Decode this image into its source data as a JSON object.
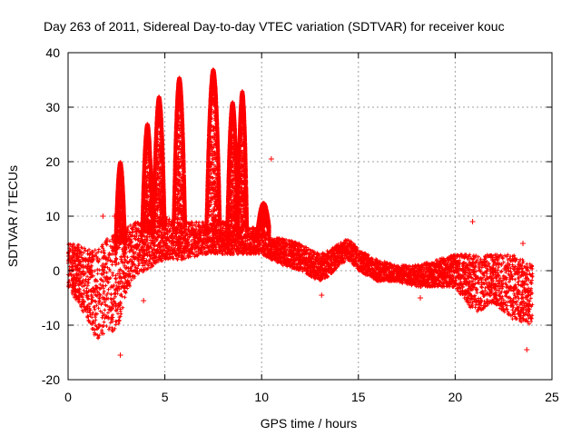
{
  "chart_data": {
    "type": "scatter",
    "title": "Day 263 of 2011, Sidereal Day-to-day VTEC variation (SDTVAR) for receiver kouc",
    "xlabel": "GPS time / hours",
    "ylabel": "SDTVAR / TECUs",
    "xlim": [
      0,
      25
    ],
    "ylim": [
      -20,
      40
    ],
    "x_ticks": [
      "0",
      "5",
      "10",
      "15",
      "20",
      "25"
    ],
    "y_ticks": [
      "-20",
      "-10",
      "0",
      "10",
      "20",
      "30",
      "40"
    ],
    "grid": true,
    "marker": "+",
    "series_color": "#ff0000",
    "series": [
      {
        "name": "SDTVAR",
        "band": [
          {
            "x": 0.0,
            "low": -3,
            "high": 5
          },
          {
            "x": 0.5,
            "low": -6,
            "high": 5
          },
          {
            "x": 1.0,
            "low": -9,
            "high": 4
          },
          {
            "x": 1.5,
            "low": -13,
            "high": 4
          },
          {
            "x": 2.0,
            "low": -11,
            "high": 6
          },
          {
            "x": 2.5,
            "low": -12,
            "high": 7
          },
          {
            "x": 3.0,
            "low": -4,
            "high": 8
          },
          {
            "x": 3.5,
            "low": -1,
            "high": 9
          },
          {
            "x": 4.0,
            "low": 0,
            "high": 9
          },
          {
            "x": 4.5,
            "low": 1,
            "high": 9
          },
          {
            "x": 5.0,
            "low": 2,
            "high": 10
          },
          {
            "x": 5.5,
            "low": 2,
            "high": 9
          },
          {
            "x": 6.0,
            "low": 2,
            "high": 9
          },
          {
            "x": 7.0,
            "low": 3,
            "high": 9
          },
          {
            "x": 8.0,
            "low": 3,
            "high": 9
          },
          {
            "x": 9.0,
            "low": 3,
            "high": 8
          },
          {
            "x": 10.0,
            "low": 3,
            "high": 8
          },
          {
            "x": 10.5,
            "low": 2,
            "high": 6
          },
          {
            "x": 11.0,
            "low": 1,
            "high": 6
          },
          {
            "x": 12.0,
            "low": 0,
            "high": 5
          },
          {
            "x": 13.0,
            "low": -2,
            "high": 3
          },
          {
            "x": 13.5,
            "low": -1,
            "high": 4
          },
          {
            "x": 14.0,
            "low": 1,
            "high": 5
          },
          {
            "x": 14.5,
            "low": 2,
            "high": 6
          },
          {
            "x": 15.0,
            "low": 0,
            "high": 4
          },
          {
            "x": 16.0,
            "low": -2,
            "high": 2
          },
          {
            "x": 17.0,
            "low": -2,
            "high": 1
          },
          {
            "x": 18.0,
            "low": -3,
            "high": 1
          },
          {
            "x": 19.0,
            "low": -3,
            "high": 2
          },
          {
            "x": 20.0,
            "low": -3,
            "high": 3
          },
          {
            "x": 21.0,
            "low": -8,
            "high": 3
          },
          {
            "x": 22.0,
            "low": -6,
            "high": 3
          },
          {
            "x": 23.0,
            "low": -9,
            "high": 3
          },
          {
            "x": 24.0,
            "low": -10,
            "high": 1
          }
        ],
        "peaks": [
          {
            "x": 2.7,
            "y": 20,
            "width": 0.25,
            "base": 5
          },
          {
            "x": 4.1,
            "y": 27,
            "width": 0.28,
            "base": 7
          },
          {
            "x": 4.7,
            "y": 32,
            "width": 0.3,
            "base": 8
          },
          {
            "x": 5.75,
            "y": 35.5,
            "width": 0.3,
            "base": 9
          },
          {
            "x": 7.5,
            "y": 37,
            "width": 0.35,
            "base": 9
          },
          {
            "x": 8.5,
            "y": 31,
            "width": 0.28,
            "base": 8
          },
          {
            "x": 9.0,
            "y": 33,
            "width": 0.25,
            "base": 8
          },
          {
            "x": 10.1,
            "y": 12.5,
            "width": 0.3,
            "base": 8
          }
        ],
        "outliers": [
          {
            "x": 3.9,
            "y": -5.5
          },
          {
            "x": 10.5,
            "y": 20.5
          },
          {
            "x": 1.8,
            "y": 10
          },
          {
            "x": 2.4,
            "y": 10
          },
          {
            "x": 2.7,
            "y": -15.5
          },
          {
            "x": 13.1,
            "y": -4.5
          },
          {
            "x": 20.9,
            "y": 9
          },
          {
            "x": 23.7,
            "y": -14.5
          },
          {
            "x": 23.5,
            "y": 5
          },
          {
            "x": 18.2,
            "y": -5
          }
        ]
      }
    ]
  }
}
